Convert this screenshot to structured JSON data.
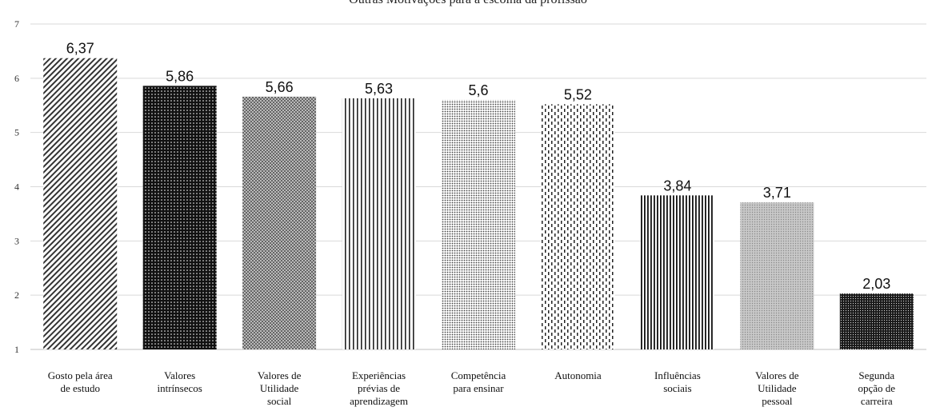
{
  "chart_data": {
    "type": "bar",
    "title": "Outras Motivações para a escolha da profissão",
    "xlabel": "",
    "ylabel": "",
    "ylim": [
      1,
      7
    ],
    "yticks": [
      1,
      2,
      3,
      4,
      5,
      6,
      7
    ],
    "grid": true,
    "legend": "none",
    "categories": [
      [
        "Gosto pela área",
        "de estudo"
      ],
      [
        "Valores",
        "intrínsecos"
      ],
      [
        "Valores de",
        "Utilidade",
        "social"
      ],
      [
        "Experiências",
        "prévias de",
        "aprendizagem"
      ],
      [
        "Competência",
        "para ensinar"
      ],
      [
        "Autonomia"
      ],
      [
        "Influências",
        "sociais"
      ],
      [
        "Valores de",
        "Utilidade",
        "pessoal"
      ],
      [
        "Segunda",
        "opção de",
        "carreira"
      ]
    ],
    "values": [
      6.37,
      5.86,
      5.66,
      5.63,
      5.6,
      5.52,
      3.84,
      3.71,
      2.03
    ],
    "data_labels": [
      "6,37",
      "5,86",
      "5,66",
      "5,63",
      "5,6",
      "5,52",
      "3,84",
      "3,71",
      "2,03"
    ],
    "patterns": [
      "diag-dense",
      "dots-dark",
      "cross",
      "vlines",
      "fine-dots",
      "dashed-vlines",
      "vlines-dense",
      "grey-dots",
      "dense-dark"
    ]
  }
}
